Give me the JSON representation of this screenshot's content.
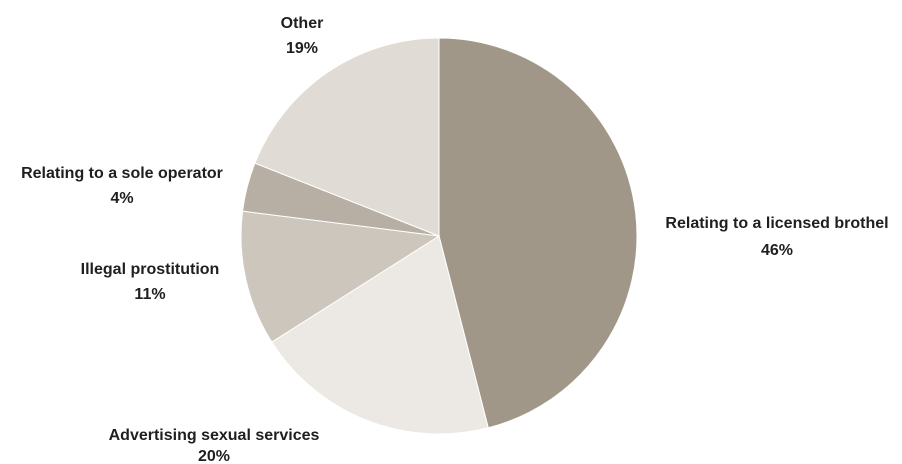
{
  "chart_data": {
    "type": "pie",
    "title": "",
    "start_angle_deg": 0,
    "direction": "clockwise",
    "slices": [
      {
        "label": "Relating to a licensed brothel",
        "value": 46,
        "value_label": "46%",
        "color": "#a19788"
      },
      {
        "label": "Advertising sexual services",
        "value": 20,
        "value_label": "20%",
        "color": "#ece9e4"
      },
      {
        "label": "Illegal prostitution",
        "value": 11,
        "value_label": "11%",
        "color": "#cdc6bc"
      },
      {
        "label": "Relating to a sole operator",
        "value": 4,
        "value_label": "4%",
        "color": "#b7afa3"
      },
      {
        "label": "Other",
        "value": 19,
        "value_label": "19%",
        "color": "#e0dbd4"
      }
    ]
  }
}
